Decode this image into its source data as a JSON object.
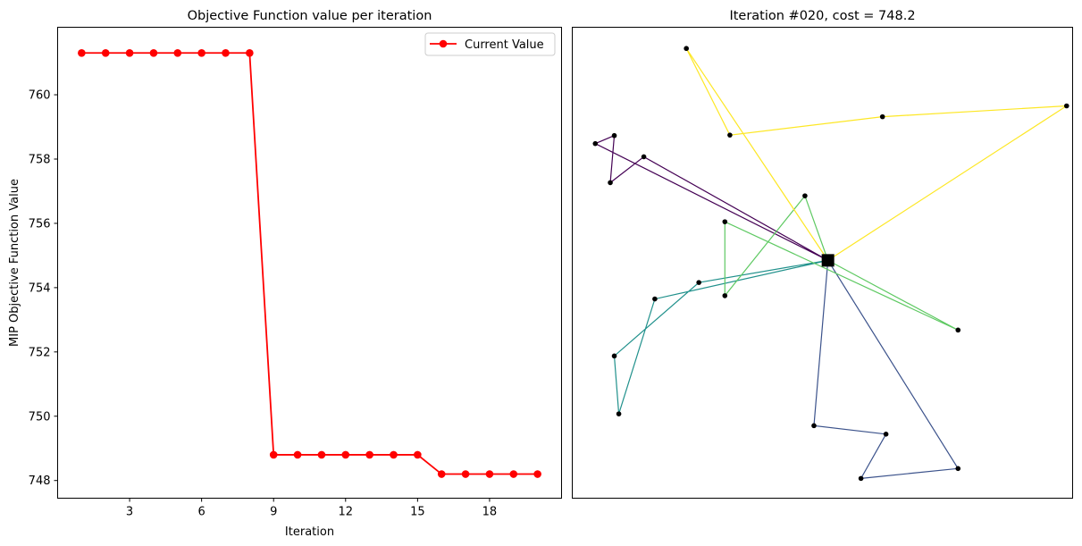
{
  "chart_data": [
    {
      "type": "line",
      "title": "Objective Function value per iteration",
      "xlabel": "Iteration",
      "ylabel": "MIP Objective Function Value",
      "xlim": [
        0,
        21
      ],
      "ylim": [
        747.45,
        762.1
      ],
      "x_ticks": [
        3,
        6,
        9,
        12,
        15,
        18
      ],
      "y_ticks": [
        748,
        750,
        752,
        754,
        756,
        758,
        760
      ],
      "legend": {
        "placement": "top-right"
      },
      "grid": false,
      "series": [
        {
          "name": "Current Value",
          "color": "#ff0000",
          "marker": "circle",
          "x": [
            1,
            2,
            3,
            4,
            5,
            6,
            7,
            8,
            9,
            10,
            11,
            12,
            13,
            14,
            15,
            16,
            17,
            18,
            19,
            20
          ],
          "values": [
            761.3,
            761.3,
            761.3,
            761.3,
            761.3,
            761.3,
            761.3,
            761.3,
            748.8,
            748.8,
            748.8,
            748.8,
            748.8,
            748.8,
            748.8,
            748.2,
            748.2,
            748.2,
            748.2,
            748.2
          ]
        }
      ]
    },
    {
      "type": "scatter",
      "title": "Iteration #020, cost = 748.2",
      "axes_ticks": false,
      "grid": false,
      "xlim": [
        0,
        100
      ],
      "ylim": [
        0,
        100
      ],
      "depot": {
        "x": 51.1,
        "y": 50.5
      },
      "nodes": [
        {
          "x": 22.8,
          "y": 95.5
        },
        {
          "x": 31.5,
          "y": 77.1
        },
        {
          "x": 62.0,
          "y": 81.0
        },
        {
          "x": 98.8,
          "y": 83.3
        },
        {
          "x": 4.6,
          "y": 75.3
        },
        {
          "x": 8.4,
          "y": 77.0
        },
        {
          "x": 7.6,
          "y": 67.0
        },
        {
          "x": 14.3,
          "y": 72.5
        },
        {
          "x": 46.5,
          "y": 64.2
        },
        {
          "x": 30.5,
          "y": 58.7
        },
        {
          "x": 30.5,
          "y": 43.0
        },
        {
          "x": 77.1,
          "y": 35.7
        },
        {
          "x": 25.3,
          "y": 45.8
        },
        {
          "x": 16.5,
          "y": 42.3
        },
        {
          "x": 8.4,
          "y": 30.2
        },
        {
          "x": 9.3,
          "y": 17.9
        },
        {
          "x": 48.3,
          "y": 15.4
        },
        {
          "x": 62.7,
          "y": 13.6
        },
        {
          "x": 77.1,
          "y": 6.3
        },
        {
          "x": 57.7,
          "y": 4.2
        }
      ],
      "routes": [
        {
          "color": "#440154",
          "path": [
            [
              51.1,
              50.5
            ],
            [
              4.6,
              75.3
            ],
            [
              8.4,
              77.0
            ],
            [
              7.6,
              67.0
            ],
            [
              14.3,
              72.5
            ],
            [
              51.1,
              50.5
            ]
          ]
        },
        {
          "color": "#3b528b",
          "path": [
            [
              51.1,
              50.5
            ],
            [
              48.3,
              15.4
            ],
            [
              62.7,
              13.6
            ],
            [
              57.7,
              4.2
            ],
            [
              77.1,
              6.3
            ],
            [
              51.1,
              50.5
            ]
          ]
        },
        {
          "color": "#21918c",
          "path": [
            [
              51.1,
              50.5
            ],
            [
              25.3,
              45.8
            ],
            [
              8.4,
              30.2
            ],
            [
              9.3,
              17.9
            ],
            [
              16.5,
              42.3
            ],
            [
              51.1,
              50.5
            ]
          ]
        },
        {
          "color": "#5ec962",
          "path": [
            [
              51.1,
              50.5
            ],
            [
              46.5,
              64.2
            ],
            [
              30.5,
              43.0
            ],
            [
              30.5,
              58.7
            ],
            [
              77.1,
              35.7
            ],
            [
              51.1,
              50.5
            ]
          ]
        },
        {
          "color": "#fde725",
          "path": [
            [
              51.1,
              50.5
            ],
            [
              22.8,
              95.5
            ],
            [
              31.5,
              77.1
            ],
            [
              62.0,
              81.0
            ],
            [
              98.8,
              83.3
            ],
            [
              51.1,
              50.5
            ]
          ]
        }
      ]
    }
  ]
}
